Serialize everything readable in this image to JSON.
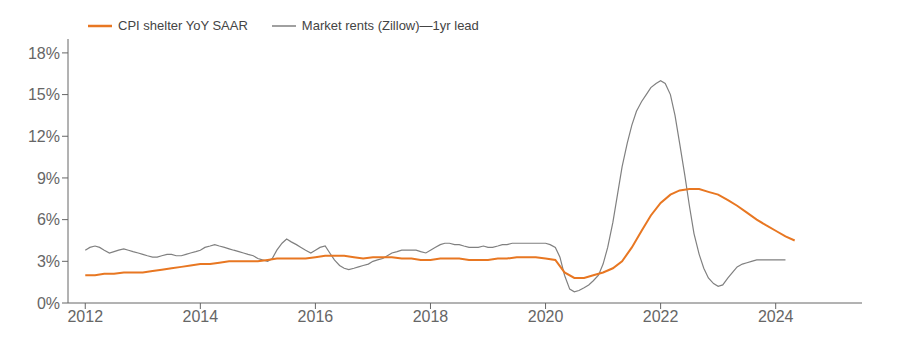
{
  "chart_data": {
    "type": "line",
    "series": [
      {
        "name": "CPI shelter YoY SAAR",
        "color": "#e87722",
        "x": [
          2012.0,
          2012.17,
          2012.33,
          2012.5,
          2012.67,
          2012.83,
          2013.0,
          2013.17,
          2013.33,
          2013.5,
          2013.67,
          2013.83,
          2014.0,
          2014.17,
          2014.33,
          2014.5,
          2014.67,
          2014.83,
          2015.0,
          2015.17,
          2015.33,
          2015.5,
          2015.67,
          2015.83,
          2016.0,
          2016.17,
          2016.33,
          2016.5,
          2016.67,
          2016.83,
          2017.0,
          2017.17,
          2017.33,
          2017.5,
          2017.67,
          2017.83,
          2018.0,
          2018.17,
          2018.33,
          2018.5,
          2018.67,
          2018.83,
          2019.0,
          2019.17,
          2019.33,
          2019.5,
          2019.67,
          2019.83,
          2020.0,
          2020.17,
          2020.33,
          2020.5,
          2020.67,
          2020.83,
          2021.0,
          2021.17,
          2021.33,
          2021.5,
          2021.67,
          2021.83,
          2022.0,
          2022.17,
          2022.33,
          2022.5,
          2022.67,
          2022.83,
          2023.0,
          2023.17,
          2023.33,
          2023.5,
          2023.67,
          2023.83,
          2024.0,
          2024.17,
          2024.33
        ],
        "values": [
          0.02,
          0.02,
          0.021,
          0.021,
          0.022,
          0.022,
          0.022,
          0.023,
          0.024,
          0.025,
          0.026,
          0.027,
          0.028,
          0.028,
          0.029,
          0.03,
          0.03,
          0.03,
          0.03,
          0.031,
          0.032,
          0.032,
          0.032,
          0.032,
          0.033,
          0.034,
          0.034,
          0.034,
          0.033,
          0.032,
          0.033,
          0.033,
          0.033,
          0.032,
          0.032,
          0.031,
          0.031,
          0.032,
          0.032,
          0.032,
          0.031,
          0.031,
          0.031,
          0.032,
          0.032,
          0.033,
          0.033,
          0.033,
          0.032,
          0.031,
          0.022,
          0.018,
          0.018,
          0.02,
          0.022,
          0.025,
          0.03,
          0.04,
          0.052,
          0.063,
          0.072,
          0.078,
          0.081,
          0.082,
          0.082,
          0.08,
          0.078,
          0.074,
          0.07,
          0.065,
          0.06,
          0.056,
          0.052,
          0.048,
          0.045
        ]
      },
      {
        "name": "Market rents (Zillow)—1yr lead",
        "color": "#808080",
        "x": [
          2012.0,
          2012.08,
          2012.17,
          2012.25,
          2012.33,
          2012.42,
          2012.5,
          2012.58,
          2012.67,
          2012.75,
          2012.83,
          2012.92,
          2013.0,
          2013.08,
          2013.17,
          2013.25,
          2013.33,
          2013.42,
          2013.5,
          2013.58,
          2013.67,
          2013.75,
          2013.83,
          2013.92,
          2014.0,
          2014.08,
          2014.17,
          2014.25,
          2014.33,
          2014.42,
          2014.5,
          2014.58,
          2014.67,
          2014.75,
          2014.83,
          2014.92,
          2015.0,
          2015.08,
          2015.17,
          2015.25,
          2015.33,
          2015.42,
          2015.5,
          2015.58,
          2015.67,
          2015.75,
          2015.83,
          2015.92,
          2016.0,
          2016.08,
          2016.17,
          2016.25,
          2016.33,
          2016.42,
          2016.5,
          2016.58,
          2016.67,
          2016.75,
          2016.83,
          2016.92,
          2017.0,
          2017.08,
          2017.17,
          2017.25,
          2017.33,
          2017.42,
          2017.5,
          2017.58,
          2017.67,
          2017.75,
          2017.83,
          2017.92,
          2018.0,
          2018.08,
          2018.17,
          2018.25,
          2018.33,
          2018.42,
          2018.5,
          2018.58,
          2018.67,
          2018.75,
          2018.83,
          2018.92,
          2019.0,
          2019.08,
          2019.17,
          2019.25,
          2019.33,
          2019.42,
          2019.5,
          2019.58,
          2019.67,
          2019.75,
          2019.83,
          2019.92,
          2020.0,
          2020.08,
          2020.17,
          2020.25,
          2020.33,
          2020.42,
          2020.5,
          2020.58,
          2020.67,
          2020.75,
          2020.83,
          2020.92,
          2021.0,
          2021.08,
          2021.17,
          2021.25,
          2021.33,
          2021.42,
          2021.5,
          2021.58,
          2021.67,
          2021.75,
          2021.83,
          2021.92,
          2022.0,
          2022.08,
          2022.17,
          2022.25,
          2022.33,
          2022.42,
          2022.5,
          2022.58,
          2022.67,
          2022.75,
          2022.83,
          2022.92,
          2023.0,
          2023.08,
          2023.17,
          2023.25,
          2023.33,
          2023.42,
          2023.5,
          2023.58,
          2023.67,
          2023.75,
          2023.83,
          2023.92,
          2024.0,
          2024.08,
          2024.17
        ],
        "values": [
          0.038,
          0.04,
          0.041,
          0.04,
          0.038,
          0.036,
          0.037,
          0.038,
          0.039,
          0.038,
          0.037,
          0.036,
          0.035,
          0.034,
          0.033,
          0.033,
          0.034,
          0.035,
          0.035,
          0.034,
          0.034,
          0.035,
          0.036,
          0.037,
          0.038,
          0.04,
          0.041,
          0.042,
          0.041,
          0.04,
          0.039,
          0.038,
          0.037,
          0.036,
          0.035,
          0.034,
          0.032,
          0.031,
          0.03,
          0.032,
          0.038,
          0.043,
          0.046,
          0.044,
          0.042,
          0.04,
          0.038,
          0.036,
          0.038,
          0.04,
          0.041,
          0.036,
          0.031,
          0.027,
          0.025,
          0.024,
          0.025,
          0.026,
          0.027,
          0.028,
          0.03,
          0.031,
          0.032,
          0.034,
          0.036,
          0.037,
          0.038,
          0.038,
          0.038,
          0.038,
          0.037,
          0.036,
          0.038,
          0.04,
          0.042,
          0.043,
          0.043,
          0.042,
          0.042,
          0.041,
          0.04,
          0.04,
          0.04,
          0.041,
          0.04,
          0.04,
          0.041,
          0.042,
          0.042,
          0.043,
          0.043,
          0.043,
          0.043,
          0.043,
          0.043,
          0.043,
          0.043,
          0.042,
          0.04,
          0.033,
          0.02,
          0.01,
          0.008,
          0.009,
          0.011,
          0.013,
          0.016,
          0.02,
          0.028,
          0.04,
          0.058,
          0.078,
          0.098,
          0.115,
          0.128,
          0.138,
          0.145,
          0.15,
          0.155,
          0.158,
          0.16,
          0.158,
          0.15,
          0.135,
          0.115,
          0.092,
          0.07,
          0.05,
          0.035,
          0.025,
          0.018,
          0.014,
          0.012,
          0.013,
          0.018,
          0.022,
          0.026,
          0.028,
          0.029,
          0.03,
          0.031,
          0.031,
          0.031,
          0.031,
          0.031,
          0.031,
          0.031
        ]
      }
    ],
    "xlim": [
      2011.7,
      2025.5
    ],
    "xticks": [
      2012,
      2014,
      2016,
      2018,
      2020,
      2022,
      2024
    ],
    "ylim": [
      0.0,
      0.19
    ],
    "yticks": [
      {
        "value": 0.0,
        "label": "0%"
      },
      {
        "value": 0.03,
        "label": "3%"
      },
      {
        "value": 0.06,
        "label": "6%"
      },
      {
        "value": 0.09,
        "label": "9%"
      },
      {
        "value": 0.12,
        "label": "12%"
      },
      {
        "value": 0.15,
        "label": "15%"
      },
      {
        "value": 0.18,
        "label": "18%"
      }
    ],
    "grid": false,
    "legend": "upper left"
  }
}
